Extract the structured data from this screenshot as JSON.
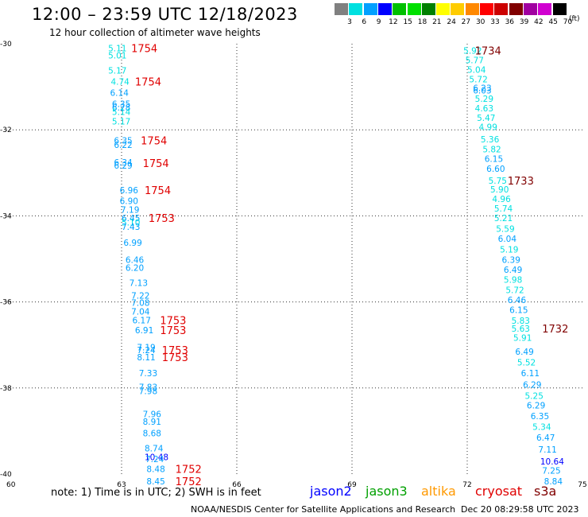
{
  "title": "12:00 – 23:59 UTC 12/18/2023",
  "subtitle": "12 hour collection of altimeter wave heights",
  "legend": {
    "units": "(ft)",
    "items": [
      {
        "label": "3",
        "color": "#808080"
      },
      {
        "label": "6",
        "color": "#00e0e0"
      },
      {
        "label": "9",
        "color": "#00a0ff"
      },
      {
        "label": "12",
        "color": "#0000ff"
      },
      {
        "label": "15",
        "color": "#00c000"
      },
      {
        "label": "18",
        "color": "#00e000"
      },
      {
        "label": "21",
        "color": "#008000"
      },
      {
        "label": "24",
        "color": "#ffff00"
      },
      {
        "label": "27",
        "color": "#ffcc00"
      },
      {
        "label": "30",
        "color": "#ff8800"
      },
      {
        "label": "33",
        "color": "#ff0000"
      },
      {
        "label": "36",
        "color": "#cc0000"
      },
      {
        "label": "39",
        "color": "#800000"
      },
      {
        "label": "42",
        "color": "#a000a0"
      },
      {
        "label": "45",
        "color": "#d000d0"
      },
      {
        "label": "70",
        "color": "#000000"
      }
    ]
  },
  "map": {
    "lon_range": [
      60,
      75
    ],
    "lat_range": [
      -40,
      -30
    ],
    "lon_ticks": [
      "60",
      "63",
      "66",
      "69",
      "72",
      "75"
    ],
    "lat_ticks": [
      "-30",
      "-32",
      "-34",
      "-36",
      "-38",
      "-40"
    ],
    "grid": "dotted"
  },
  "track_west": [
    {
      "lon": 62.65,
      "lat": -30.1,
      "v": "5.11",
      "c": "#00e0e0"
    },
    {
      "lon": 62.65,
      "lat": -30.27,
      "v": "5.01",
      "c": "#00e0e0"
    },
    {
      "lon": 62.65,
      "lat": -30.62,
      "v": "5.17",
      "c": "#00e0e0"
    },
    {
      "lon": 62.72,
      "lat": -30.88,
      "v": "4.74",
      "c": "#00e0e0"
    },
    {
      "lon": 62.7,
      "lat": -31.14,
      "v": "6.14",
      "c": "#00a0ff"
    },
    {
      "lon": 62.75,
      "lat": -31.4,
      "v": "6.35",
      "c": "#00a0ff"
    },
    {
      "lon": 62.75,
      "lat": -31.48,
      "v": "6.28",
      "c": "#00a0ff"
    },
    {
      "lon": 62.75,
      "lat": -31.58,
      "v": "5.14",
      "c": "#00e0e0"
    },
    {
      "lon": 62.75,
      "lat": -31.8,
      "v": "5.17",
      "c": "#00e0e0"
    },
    {
      "lon": 62.8,
      "lat": -32.25,
      "v": "6.35",
      "c": "#00a0ff"
    },
    {
      "lon": 62.8,
      "lat": -32.35,
      "v": "6.22",
      "c": "#00a0ff"
    },
    {
      "lon": 62.8,
      "lat": -32.75,
      "v": "6.34",
      "c": "#00a0ff"
    },
    {
      "lon": 62.8,
      "lat": -32.83,
      "v": "6.29",
      "c": "#00a0ff"
    },
    {
      "lon": 62.95,
      "lat": -33.4,
      "v": "6.96",
      "c": "#00a0ff"
    },
    {
      "lon": 62.95,
      "lat": -33.65,
      "v": "6.90",
      "c": "#00a0ff"
    },
    {
      "lon": 62.98,
      "lat": -33.85,
      "v": "7.19",
      "c": "#00a0ff"
    },
    {
      "lon": 63.0,
      "lat": -34.05,
      "v": "6.45",
      "c": "#00a0ff"
    },
    {
      "lon": 63.0,
      "lat": -34.15,
      "v": "5.10",
      "c": "#00e0e0"
    },
    {
      "lon": 63.0,
      "lat": -34.25,
      "v": "7.43",
      "c": "#00a0ff"
    },
    {
      "lon": 63.05,
      "lat": -34.62,
      "v": "6.99",
      "c": "#00a0ff"
    },
    {
      "lon": 63.1,
      "lat": -35.02,
      "v": "6.46",
      "c": "#00a0ff"
    },
    {
      "lon": 63.1,
      "lat": -35.2,
      "v": "6.20",
      "c": "#00a0ff"
    },
    {
      "lon": 63.2,
      "lat": -35.55,
      "v": "7.13",
      "c": "#00a0ff"
    },
    {
      "lon": 63.25,
      "lat": -35.85,
      "v": "7.22",
      "c": "#00a0ff"
    },
    {
      "lon": 63.25,
      "lat": -36.02,
      "v": "7.08",
      "c": "#00a0ff"
    },
    {
      "lon": 63.25,
      "lat": -36.22,
      "v": "7.04",
      "c": "#00a0ff"
    },
    {
      "lon": 63.28,
      "lat": -36.42,
      "v": "6.17",
      "c": "#00a0ff"
    },
    {
      "lon": 63.35,
      "lat": -36.65,
      "v": "6.91",
      "c": "#00a0ff"
    },
    {
      "lon": 63.4,
      "lat": -37.05,
      "v": "7.19",
      "c": "#00a0ff"
    },
    {
      "lon": 63.4,
      "lat": -37.12,
      "v": "7.24",
      "c": "#00a0ff"
    },
    {
      "lon": 63.4,
      "lat": -37.28,
      "v": "8.11",
      "c": "#00a0ff"
    },
    {
      "lon": 63.45,
      "lat": -37.65,
      "v": "7.33",
      "c": "#00a0ff"
    },
    {
      "lon": 63.45,
      "lat": -37.98,
      "v": "7.83",
      "c": "#00a0ff"
    },
    {
      "lon": 63.45,
      "lat": -38.07,
      "v": "7.98",
      "c": "#00a0ff"
    },
    {
      "lon": 63.55,
      "lat": -38.6,
      "v": "7.96",
      "c": "#00a0ff"
    },
    {
      "lon": 63.55,
      "lat": -38.78,
      "v": "8.91",
      "c": "#00a0ff"
    },
    {
      "lon": 63.55,
      "lat": -39.05,
      "v": "8.68",
      "c": "#00a0ff"
    },
    {
      "lon": 63.6,
      "lat": -39.4,
      "v": "8.74",
      "c": "#00a0ff"
    },
    {
      "lon": 63.6,
      "lat": -39.6,
      "v": "10.48",
      "c": "#0000ff"
    },
    {
      "lon": 63.62,
      "lat": -39.65,
      "v": "7.24",
      "c": "#00a0ff"
    },
    {
      "lon": 63.65,
      "lat": -39.88,
      "v": "8.48",
      "c": "#00a0ff"
    },
    {
      "lon": 63.65,
      "lat": -40.17,
      "v": "8.45",
      "c": "#00a0ff"
    }
  ],
  "track_east": [
    {
      "lon": 71.9,
      "lat": -30.16,
      "v": "5.92",
      "c": "#00e0e0"
    },
    {
      "lon": 71.95,
      "lat": -30.38,
      "v": "5.77",
      "c": "#00e0e0"
    },
    {
      "lon": 72.0,
      "lat": -30.6,
      "v": "5.04",
      "c": "#00e0e0"
    },
    {
      "lon": 72.05,
      "lat": -30.82,
      "v": "5.72",
      "c": "#00e0e0"
    },
    {
      "lon": 72.15,
      "lat": -31.03,
      "v": "6.23",
      "c": "#00a0ff"
    },
    {
      "lon": 72.15,
      "lat": -31.08,
      "v": "6.03",
      "c": "#00a0ff"
    },
    {
      "lon": 72.2,
      "lat": -31.28,
      "v": "5.29",
      "c": "#00e0e0"
    },
    {
      "lon": 72.2,
      "lat": -31.5,
      "v": "4.63",
      "c": "#00e0e0"
    },
    {
      "lon": 72.25,
      "lat": -31.72,
      "v": "5.47",
      "c": "#00e0e0"
    },
    {
      "lon": 72.3,
      "lat": -31.93,
      "v": "4.99",
      "c": "#00e0e0"
    },
    {
      "lon": 72.35,
      "lat": -32.22,
      "v": "5.36",
      "c": "#00e0e0"
    },
    {
      "lon": 72.4,
      "lat": -32.45,
      "v": "5.82",
      "c": "#00e0e0"
    },
    {
      "lon": 72.45,
      "lat": -32.67,
      "v": "6.15",
      "c": "#00a0ff"
    },
    {
      "lon": 72.5,
      "lat": -32.9,
      "v": "6.60",
      "c": "#00a0ff"
    },
    {
      "lon": 72.55,
      "lat": -33.18,
      "v": "5.75",
      "c": "#00e0e0"
    },
    {
      "lon": 72.6,
      "lat": -33.38,
      "v": "5.90",
      "c": "#00e0e0"
    },
    {
      "lon": 72.65,
      "lat": -33.6,
      "v": "4.96",
      "c": "#00e0e0"
    },
    {
      "lon": 72.7,
      "lat": -33.83,
      "v": "5.74",
      "c": "#00e0e0"
    },
    {
      "lon": 72.7,
      "lat": -34.05,
      "v": "5.21",
      "c": "#00e0e0"
    },
    {
      "lon": 72.75,
      "lat": -34.3,
      "v": "5.59",
      "c": "#00e0e0"
    },
    {
      "lon": 72.8,
      "lat": -34.53,
      "v": "6.04",
      "c": "#00a0ff"
    },
    {
      "lon": 72.85,
      "lat": -34.78,
      "v": "5.19",
      "c": "#00e0e0"
    },
    {
      "lon": 72.9,
      "lat": -35.02,
      "v": "6.39",
      "c": "#00a0ff"
    },
    {
      "lon": 72.95,
      "lat": -35.25,
      "v": "6.49",
      "c": "#00a0ff"
    },
    {
      "lon": 72.95,
      "lat": -35.48,
      "v": "5.98",
      "c": "#00e0e0"
    },
    {
      "lon": 73.0,
      "lat": -35.72,
      "v": "5.72",
      "c": "#00e0e0"
    },
    {
      "lon": 73.05,
      "lat": -35.95,
      "v": "6.46",
      "c": "#00a0ff"
    },
    {
      "lon": 73.1,
      "lat": -36.18,
      "v": "6.15",
      "c": "#00a0ff"
    },
    {
      "lon": 73.15,
      "lat": -36.43,
      "v": "5.83",
      "c": "#00e0e0"
    },
    {
      "lon": 73.15,
      "lat": -36.62,
      "v": "5.63",
      "c": "#00e0e0"
    },
    {
      "lon": 73.2,
      "lat": -36.83,
      "v": "5.91",
      "c": "#00e0e0"
    },
    {
      "lon": 73.25,
      "lat": -37.15,
      "v": "6.49",
      "c": "#00a0ff"
    },
    {
      "lon": 73.3,
      "lat": -37.4,
      "v": "5.52",
      "c": "#00e0e0"
    },
    {
      "lon": 73.4,
      "lat": -37.65,
      "v": "6.11",
      "c": "#00a0ff"
    },
    {
      "lon": 73.45,
      "lat": -37.92,
      "v": "6.29",
      "c": "#00a0ff"
    },
    {
      "lon": 73.5,
      "lat": -38.18,
      "v": "5.25",
      "c": "#00e0e0"
    },
    {
      "lon": 73.55,
      "lat": -38.4,
      "v": "6.29",
      "c": "#00a0ff"
    },
    {
      "lon": 73.65,
      "lat": -38.65,
      "v": "6.35",
      "c": "#00a0ff"
    },
    {
      "lon": 73.7,
      "lat": -38.9,
      "v": "5.34",
      "c": "#00e0e0"
    },
    {
      "lon": 73.8,
      "lat": -39.15,
      "v": "6.47",
      "c": "#00a0ff"
    },
    {
      "lon": 73.85,
      "lat": -39.43,
      "v": "7.11",
      "c": "#00a0ff"
    },
    {
      "lon": 73.9,
      "lat": -39.7,
      "v": "10.64",
      "c": "#0000ff"
    },
    {
      "lon": 73.95,
      "lat": -39.92,
      "v": "7.25",
      "c": "#00a0ff"
    },
    {
      "lon": 74.0,
      "lat": -40.17,
      "v": "8.84",
      "c": "#00a0ff"
    }
  ],
  "time_labels": [
    {
      "lon": 63.25,
      "lat": -30.1,
      "t": "1754",
      "c": "#e00000"
    },
    {
      "lon": 63.35,
      "lat": -30.88,
      "t": "1754",
      "c": "#e00000"
    },
    {
      "lon": 63.5,
      "lat": -32.25,
      "t": "1754",
      "c": "#e00000"
    },
    {
      "lon": 63.55,
      "lat": -32.77,
      "t": "1754",
      "c": "#e00000"
    },
    {
      "lon": 63.6,
      "lat": -33.4,
      "t": "1754",
      "c": "#e00000"
    },
    {
      "lon": 63.7,
      "lat": -34.05,
      "t": "1753",
      "c": "#e00000"
    },
    {
      "lon": 64.0,
      "lat": -36.42,
      "t": "1753",
      "c": "#e00000"
    },
    {
      "lon": 64.0,
      "lat": -36.65,
      "t": "1753",
      "c": "#e00000"
    },
    {
      "lon": 64.05,
      "lat": -37.12,
      "t": "1753",
      "c": "#e00000"
    },
    {
      "lon": 64.05,
      "lat": -37.28,
      "t": "1753",
      "c": "#e00000"
    },
    {
      "lon": 64.4,
      "lat": -39.88,
      "t": "1752",
      "c": "#e00000"
    },
    {
      "lon": 64.4,
      "lat": -40.17,
      "t": "1752",
      "c": "#e00000"
    },
    {
      "lon": 72.2,
      "lat": -30.16,
      "t": "1734",
      "c": "#800000"
    },
    {
      "lon": 73.05,
      "lat": -33.18,
      "t": "1733",
      "c": "#800000"
    },
    {
      "lon": 73.95,
      "lat": -36.62,
      "t": "1732",
      "c": "#800000"
    }
  ],
  "footer": {
    "note": "note: 1) Time is in UTC; 2) SWH is in feet",
    "satellites": [
      {
        "name": "jason2",
        "color": "#0000ff"
      },
      {
        "name": "jason3",
        "color": "#00a000"
      },
      {
        "name": "altika",
        "color": "#ff9900"
      },
      {
        "name": "cryosat",
        "color": "#e00000"
      },
      {
        "name": "s3a",
        "color": "#800000"
      }
    ],
    "credit": "NOAA/NESDIS Center for Satellite Applications and Research",
    "timestamp": "Dec 20 08:29:58 UTC 2023"
  }
}
